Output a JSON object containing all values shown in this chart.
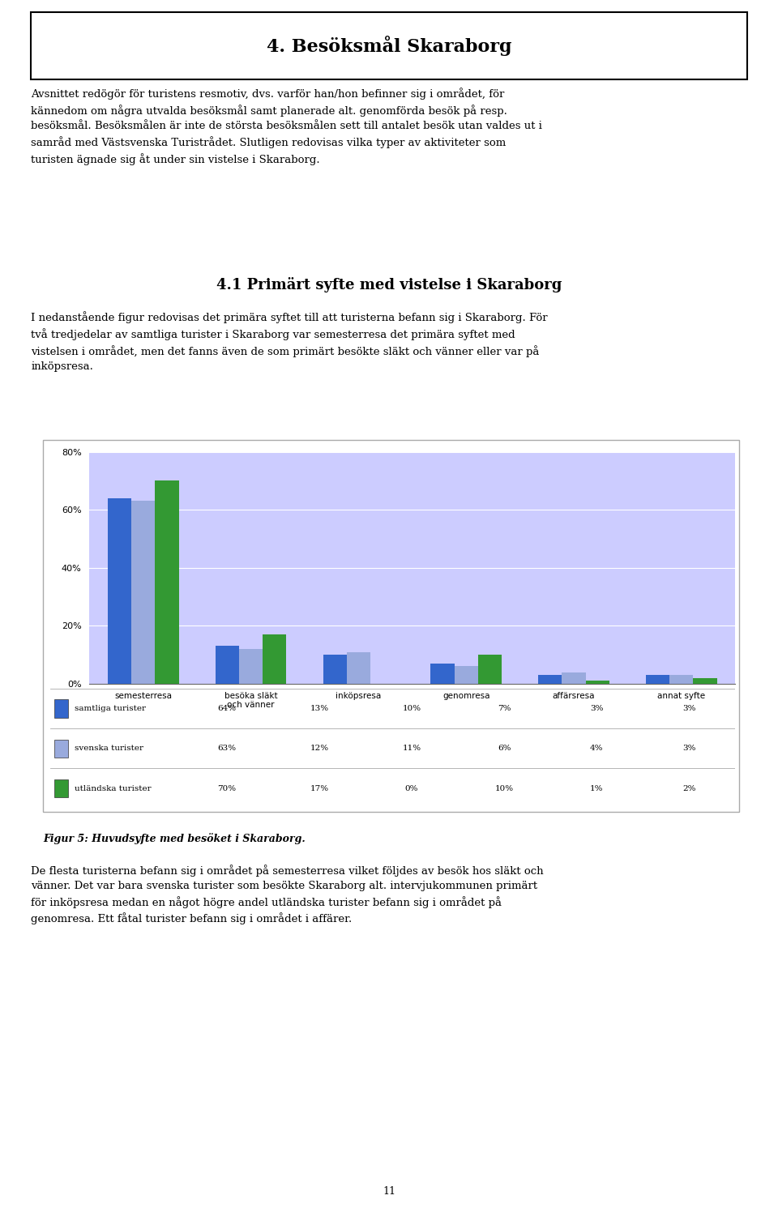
{
  "title": "4. Besöksmål Skaraborg",
  "body_text": "Avsnittet redогör för turistens resmotiv, dvs. varför han/hon befinner sig i området, för kännedom om några utvalda besöksmål samt planerade alt. genomförda besök på resp. besöksmål. Besöksmålen är inte de största besöksmålen sett till antalet besök utan valdes ut i samråd med Västsvenska Turistrådet. Slutligen redovisas vilka typer av aktiviteter som turisten ägnade sig åt under sin vistelse i Skaraborg.",
  "section_title": "4.1 Primärt syfte med vistelse i Skaraborg",
  "section_text_1": "I nedanstående figur redovisas det primära syftet till att turisterna befann sig i Skaraborg. För två tredjedelar av samtliga turister i Skaraborg var semesterresa det primära syftet med vistelsen i området, men det fanns även de som primärt besökte släkt och vänner eller var på inköpsresa.",
  "categories": [
    "semesterresa",
    "besöka släkt\noch vänner",
    "inköpsresa",
    "genomresa",
    "affärsresa",
    "annat syfte"
  ],
  "series": [
    {
      "name": "samtliga turister",
      "values": [
        64,
        13,
        10,
        7,
        3,
        3
      ],
      "color": "#3366cc"
    },
    {
      "name": "svenska turister",
      "values": [
        63,
        12,
        11,
        6,
        4,
        3
      ],
      "color": "#99aadd"
    },
    {
      "name": "utländska turister",
      "values": [
        70,
        17,
        0,
        10,
        1,
        2
      ],
      "color": "#339933"
    }
  ],
  "ylim": [
    0,
    80
  ],
  "yticks": [
    0,
    20,
    40,
    60,
    80
  ],
  "ytick_labels": [
    "0%",
    "20%",
    "40%",
    "60%",
    "80%"
  ],
  "plot_bg_color": "#ccccff",
  "figure_bg_color": "#ffffff",
  "fig_caption": "Figur 5: Huvudsyfte med besöket i Skaraborg.",
  "footer_text": "De flesta turisterna befann sig i området på semesterresa vilket följdes av besök hos släkt och vänner. Det var bara svenska turister som besökte Skaraborg alt. intervjukommunen primärt för inköpsresa medan en något högre andel utländska turister befann sig i området på genomresa. Ett fåtal turister befann sig i området i affärer.",
  "page_number": "11",
  "table_data": [
    [
      "samtliga turister",
      "64%",
      "13%",
      "10%",
      "7%",
      "3%",
      "3%"
    ],
    [
      "svenska turister",
      "63%",
      "12%",
      "11%",
      "6%",
      "4%",
      "3%"
    ],
    [
      "utländska turister",
      "70%",
      "17%",
      "0%",
      "10%",
      "1%",
      "2%"
    ]
  ],
  "legend_colors": [
    "#3366cc",
    "#99aadd",
    "#339933"
  ]
}
